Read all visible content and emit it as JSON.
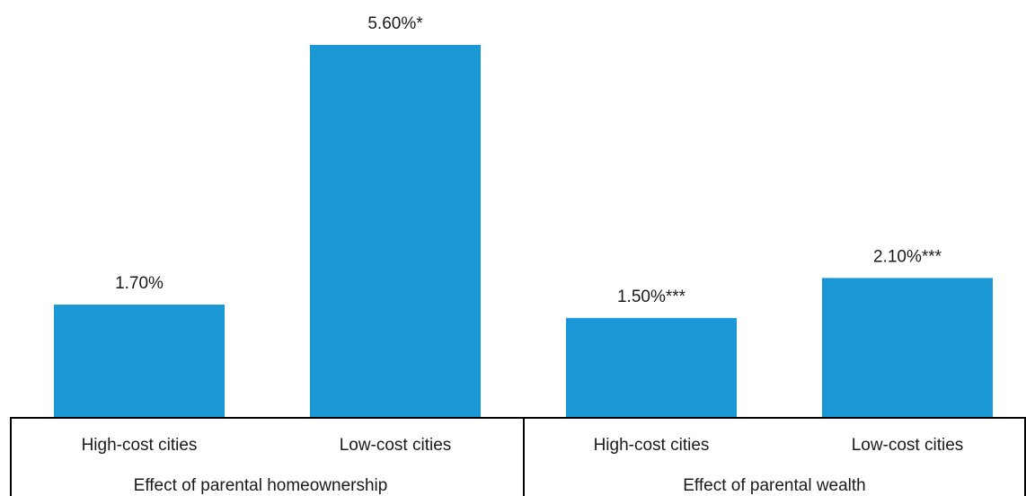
{
  "chart_data": {
    "type": "bar",
    "bar_color": "#1a98d5",
    "groups": [
      {
        "label": "Effect of parental homeownership",
        "bars": [
          {
            "category": "High-cost cities",
            "value": 1.7,
            "label": "1.70%"
          },
          {
            "category": "Low-cost cities",
            "value": 5.6,
            "label": "5.60%*"
          }
        ]
      },
      {
        "label": "Effect of parental wealth",
        "bars": [
          {
            "category": "High-cost cities",
            "value": 1.5,
            "label": "1.50%***"
          },
          {
            "category": "Low-cost cities",
            "value": 2.1,
            "label": "2.10%***"
          }
        ]
      }
    ],
    "ylim": [
      0,
      5.6
    ]
  }
}
